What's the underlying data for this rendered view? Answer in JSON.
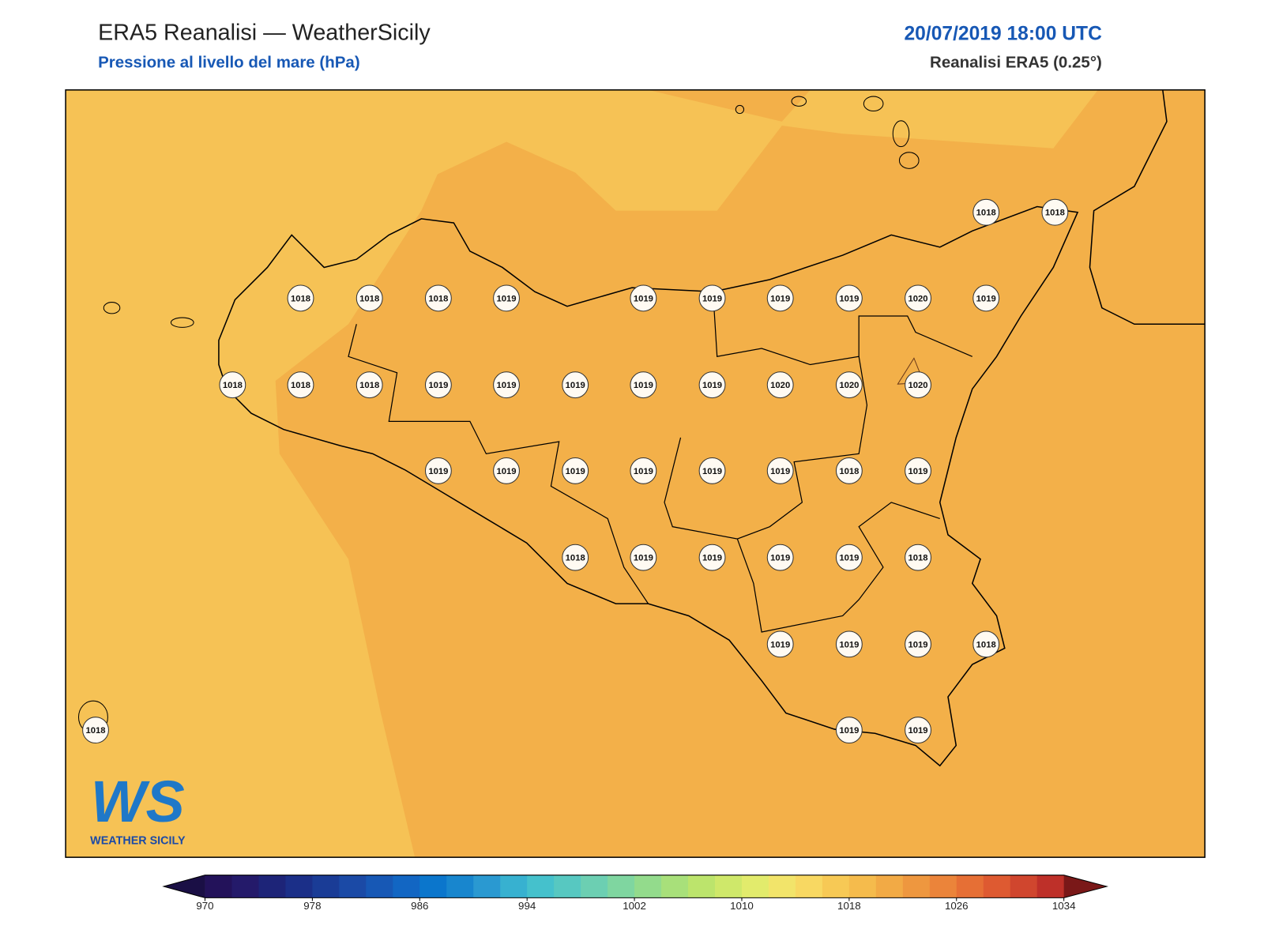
{
  "header": {
    "title": "ERA5 Reanalisi — WeatherSicily",
    "subtitle": "Pressione al livello del mare (hPa)",
    "datetime": "20/07/2019 18:00 UTC",
    "source": "Reanalisi ERA5 (0.25°)"
  },
  "map": {
    "stations": [
      1018,
      1018,
      1018,
      1018,
      1018,
      1019,
      1019,
      1019,
      1019,
      1019,
      1020,
      1019,
      1018,
      1018,
      1018,
      1019,
      1019,
      1019,
      1019,
      1019,
      1020,
      1020,
      1020,
      1019,
      1019,
      1019,
      1019,
      1019,
      1019,
      1018,
      1019,
      1018,
      1019,
      1019,
      1019,
      1019,
      1018,
      1019,
      1019,
      1019,
      1018,
      1018,
      1019,
      1019
    ],
    "colorbar": {
      "lim": [
        970,
        1034
      ],
      "ticks": [
        970,
        978,
        986,
        994,
        1002,
        1010,
        1018,
        1026,
        1034
      ],
      "colors": [
        "#23125a",
        "#241a6a",
        "#1d2478",
        "#1b2f88",
        "#1a3c96",
        "#1b4aa6",
        "#1758b5",
        "#1266c3",
        "#0b76cc",
        "#1886ce",
        "#2a99d1",
        "#37b1d0",
        "#45c1cc",
        "#57c8c1",
        "#6ccfb2",
        "#7fd6a0",
        "#93db8c",
        "#a8e07a",
        "#bce46c",
        "#cfe86a",
        "#e2eb6c",
        "#f2e46a",
        "#f8d862",
        "#f7c955",
        "#f5bb4c",
        "#f2aa45",
        "#ee973f",
        "#eb843a",
        "#e66f35",
        "#de5a31",
        "#d0462e",
        "#be3029"
      ],
      "under": "#1a0f45",
      "over": "#7a1818"
    }
  },
  "logo": {
    "mark": "WS",
    "name": "WEATHER SICILY"
  }
}
